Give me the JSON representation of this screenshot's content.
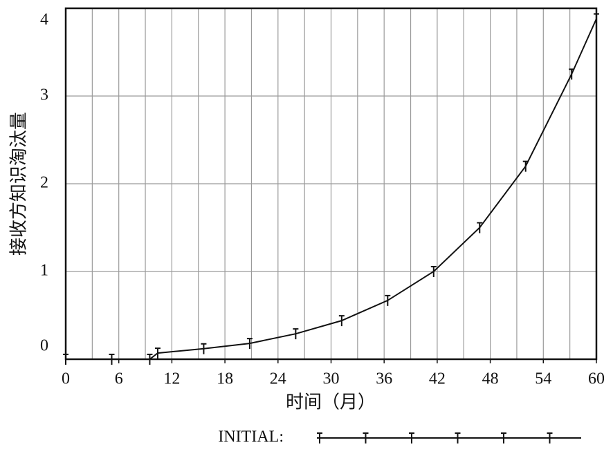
{
  "chart_data": {
    "type": "line",
    "x_label": "时间（月）",
    "y_label": "接收方知识淘汰量",
    "x": [
      0,
      5.2,
      9.5,
      10.4,
      15.6,
      20.8,
      26,
      31.2,
      36.4,
      41.6,
      46.8,
      52,
      57.2,
      60
    ],
    "series": [
      {
        "name": "INITIAL:",
        "color": "#111111",
        "values": [
          0,
          0,
          0,
          0.07,
          0.12,
          0.18,
          0.29,
          0.44,
          0.67,
          1.0,
          1.5,
          2.2,
          3.25,
          3.88
        ]
      }
    ],
    "xlim": [
      0,
      60
    ],
    "xticks": [
      0,
      6,
      12,
      18,
      24,
      30,
      36,
      42,
      48,
      54,
      60
    ],
    "xgrid": [
      3,
      6,
      9,
      12,
      15,
      18,
      21,
      24,
      27,
      30,
      33,
      36,
      39,
      42,
      45,
      48,
      51,
      54,
      57
    ],
    "ylim": [
      0,
      4
    ],
    "yticks": [
      0,
      1,
      2,
      3,
      4
    ],
    "grid": true,
    "legend": "bottom"
  }
}
